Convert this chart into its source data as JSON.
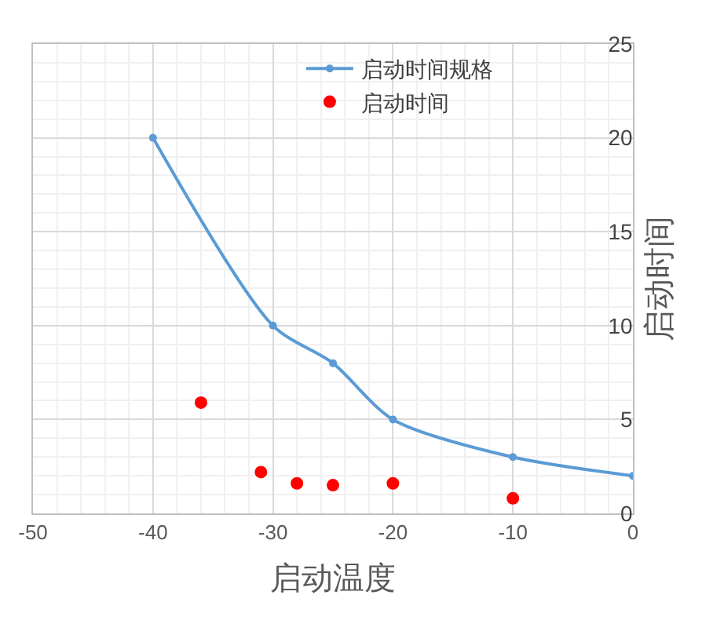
{
  "chart_data": {
    "type": "line",
    "xlabel": "启动温度",
    "ylabel": "启动时间",
    "xlim": [
      -50,
      0
    ],
    "xticks": [
      -50,
      -40,
      -30,
      -20,
      -10,
      0
    ],
    "ylim": [
      0,
      25
    ],
    "yticks": [
      0,
      5,
      10,
      15,
      20,
      25
    ],
    "grid": true,
    "legend": "top right",
    "marker": "circle",
    "line_style": "solid",
    "series": [
      {
        "name": "启动时间规格",
        "color": "#5b9bd5",
        "x": [
          -40,
          -30,
          -25,
          -20,
          -10,
          0
        ],
        "values": [
          20,
          10,
          8,
          5,
          3,
          2
        ]
      },
      {
        "name": "启动时间",
        "color": "#ff0000",
        "type": "scatter",
        "x": [
          -36,
          -31,
          -28,
          -25,
          -20,
          -10
        ],
        "values": [
          5.9,
          2.2,
          1.6,
          1.5,
          1.6,
          0.8
        ]
      }
    ]
  }
}
